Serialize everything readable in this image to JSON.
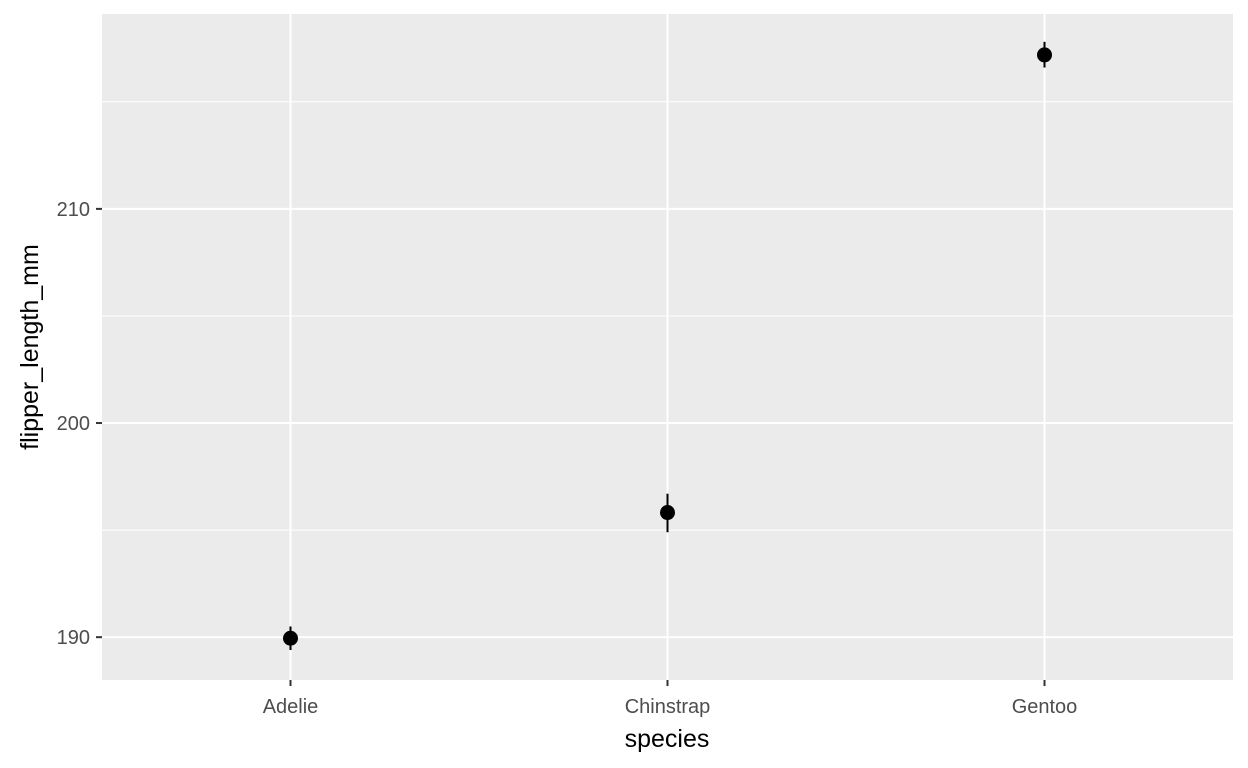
{
  "chart_data": {
    "type": "scatter",
    "subtype": "pointrange",
    "title": "",
    "xlabel": "species",
    "ylabel": "flipper_length_mm",
    "categories": [
      "Adelie",
      "Chinstrap",
      "Gentoo"
    ],
    "values": [
      189.95,
      195.82,
      217.19
    ],
    "lower": [
      189.4,
      194.9,
      216.6
    ],
    "upper": [
      190.5,
      196.7,
      217.8
    ],
    "ylim": [
      188,
      219.1
    ],
    "yticks": [
      190,
      200,
      210
    ],
    "ytick_labels": [
      "190",
      "200",
      "210"
    ],
    "grid": true,
    "legend": "none",
    "colors": {
      "panel": "#ebebeb",
      "grid": "#ffffff",
      "point": "#000000",
      "tick_text": "#4d4d4d",
      "tick_mark": "#333333"
    }
  }
}
